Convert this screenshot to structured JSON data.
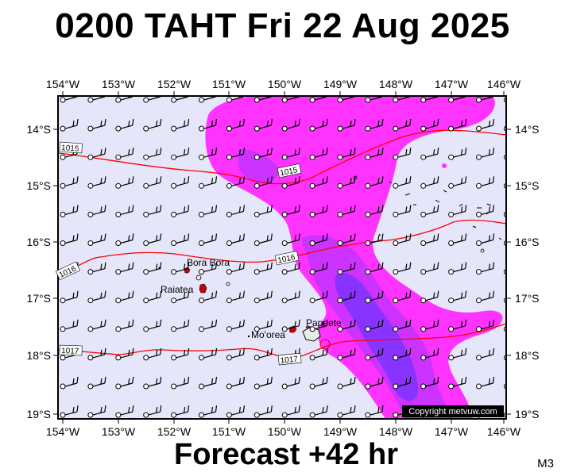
{
  "title": "0200 TAHT Fri 22 Aug 2025",
  "footer": "Forecast +42 hr",
  "tag": "M3",
  "copyright": "Copyright metvuw.com",
  "lon_labels": [
    "154°W",
    "153°W",
    "152°W",
    "151°W",
    "150°W",
    "149°W",
    "148°W",
    "147°W",
    "146°W"
  ],
  "lat_labels": [
    "14°S",
    "15°S",
    "16°S",
    "17°S",
    "18°S",
    "19°S"
  ],
  "places": [
    "Bora Bora",
    "Raiatea",
    "Mo'orea",
    "Papeete"
  ],
  "isobar_labels": [
    "1015",
    "1015",
    "1016",
    "1016",
    "1017",
    "1017"
  ],
  "colors": {
    "background": "#e6e6fa",
    "rain_light": "#ff33ff",
    "rain_medium": "#cc33ff",
    "rain_heavy": "#8833ff",
    "isobar": "#ff0000",
    "land": "#cc0000"
  }
}
